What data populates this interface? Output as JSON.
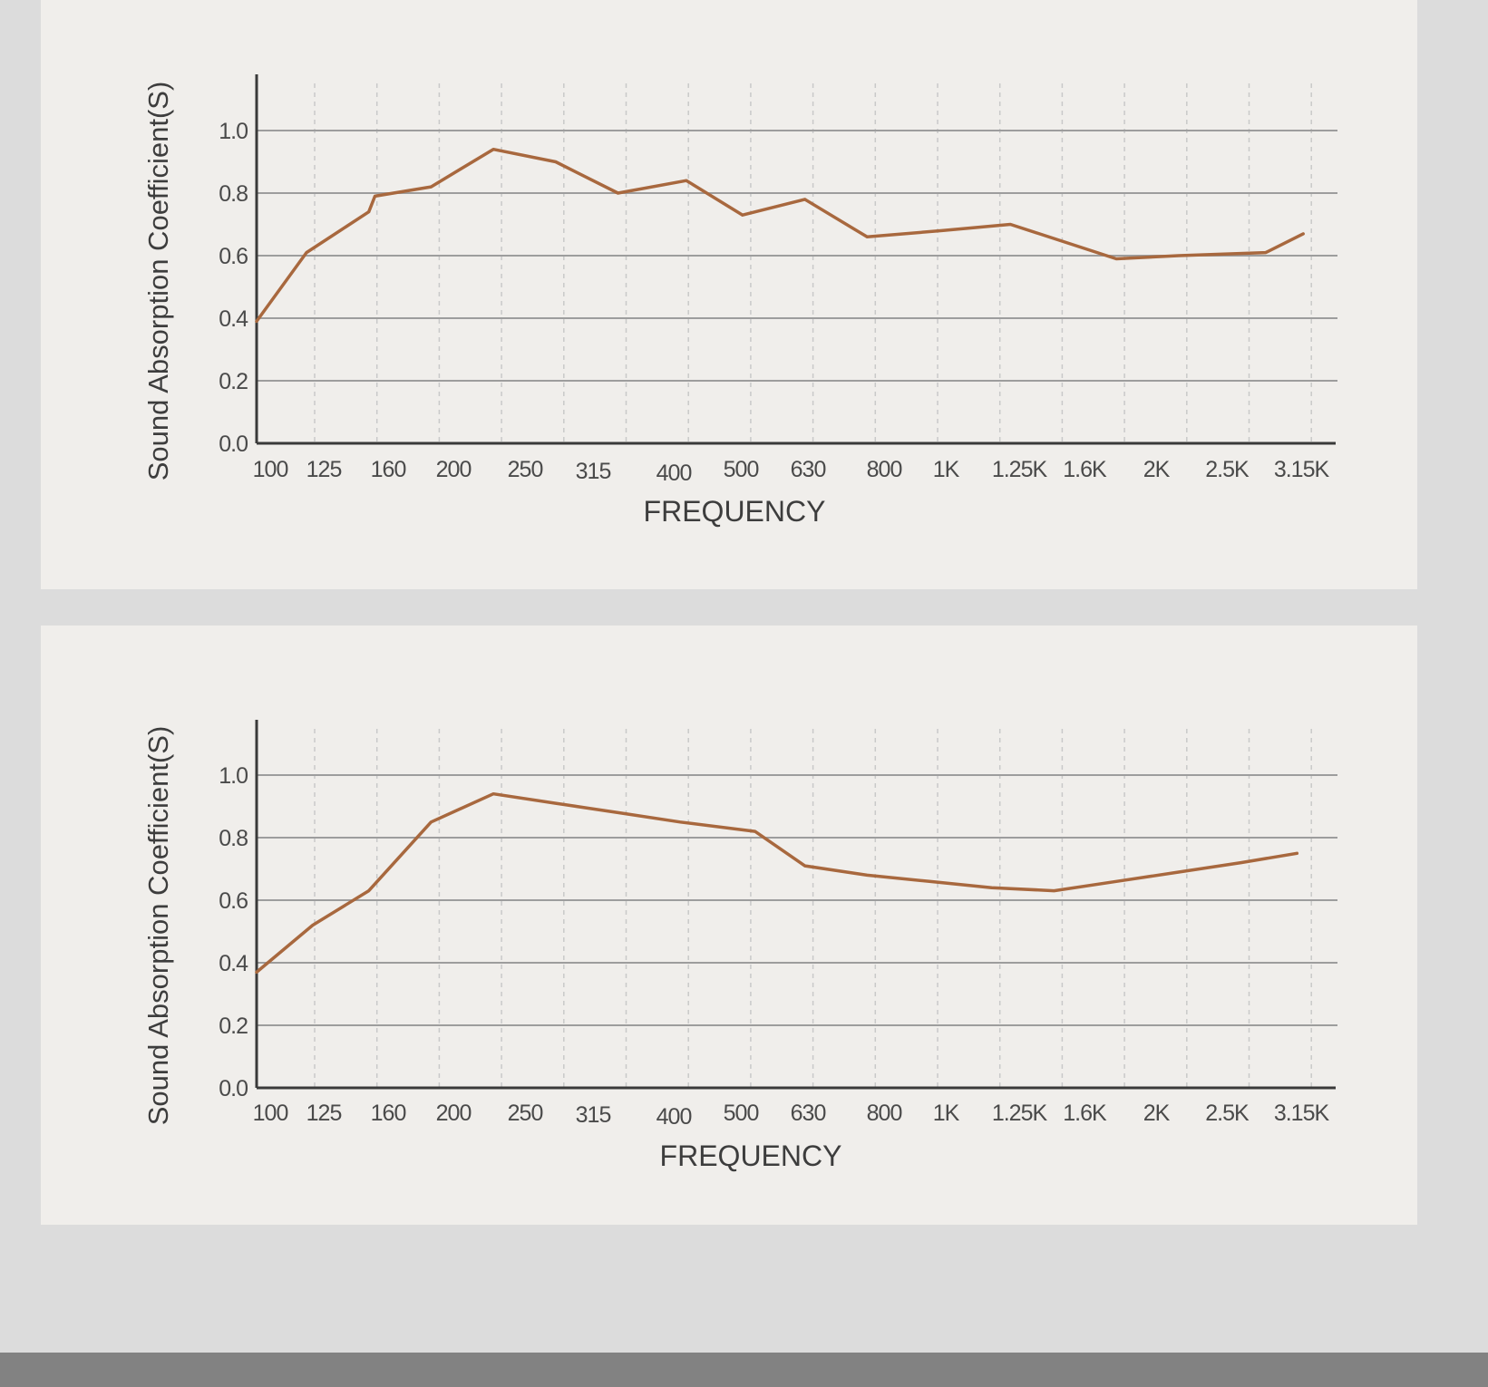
{
  "chart_data": [
    {
      "type": "line",
      "title": "",
      "xlabel": "FREQUENCY",
      "ylabel": "Sound Absorption Coefficient(S)",
      "categories": [
        "100",
        "125",
        "160",
        "200",
        "250",
        "315",
        "400",
        "500",
        "630",
        "800",
        "1K",
        "1.25K",
        "1.6K",
        "2K",
        "2.5K",
        "3.15K"
      ],
      "yticks": [
        "0.0",
        "0.2",
        "0.4",
        "0.6",
        "0.8",
        "1.0"
      ],
      "ylim": [
        0,
        1.2
      ],
      "grid": true,
      "line_color": "#a8683e",
      "series": [
        {
          "x": [
            0,
            0.8,
            1.8,
            1.9,
            2.8,
            3.8,
            4.8,
            5.8,
            6.9,
            7.8,
            8.8,
            9.8,
            11.0,
            12.1,
            13.8,
            14.8,
            16.2,
            16.8
          ],
          "values": [
            0.39,
            0.61,
            0.74,
            0.79,
            0.82,
            0.94,
            0.9,
            0.8,
            0.84,
            0.73,
            0.78,
            0.66,
            0.68,
            0.7,
            0.59,
            0.6,
            0.61,
            0.67
          ]
        }
      ]
    },
    {
      "type": "line",
      "title": "",
      "xlabel": "FREQUENCY",
      "ylabel": "Sound Absorption Coefficient(S)",
      "categories": [
        "100",
        "125",
        "160",
        "200",
        "250",
        "315",
        "400",
        "500",
        "630",
        "800",
        "1K",
        "1.25K",
        "1.6K",
        "2K",
        "2.5K",
        "3.15K"
      ],
      "yticks": [
        "0.0",
        "0.2",
        "0.4",
        "0.6",
        "0.8",
        "1.0"
      ],
      "ylim": [
        0,
        1.2
      ],
      "grid": true,
      "line_color": "#a8683e",
      "series": [
        {
          "x": [
            0,
            0.9,
            1.8,
            2.8,
            3.8,
            4.8,
            5.8,
            6.8,
            8.0,
            8.8,
            9.8,
            10.8,
            11.8,
            12.8,
            13.8,
            14.8,
            15.8,
            16.7
          ],
          "values": [
            0.37,
            0.52,
            0.63,
            0.85,
            0.94,
            0.91,
            0.88,
            0.85,
            0.82,
            0.71,
            0.68,
            0.66,
            0.64,
            0.63,
            0.66,
            0.69,
            0.72,
            0.75
          ]
        }
      ]
    }
  ]
}
